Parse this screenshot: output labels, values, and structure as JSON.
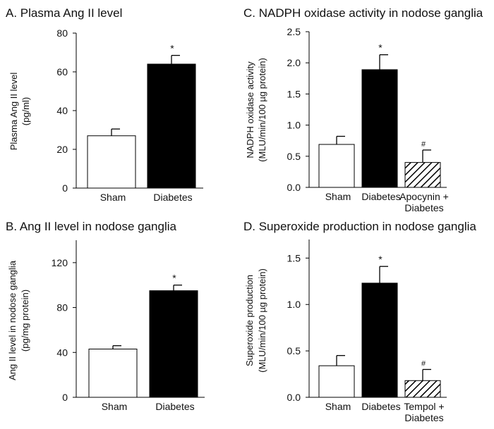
{
  "chart_data": [
    {
      "type": "bar",
      "title": "A. Plasma Ang II level",
      "ylabel": "Plasma Ang II level",
      "ylabel2": "(pg/ml)",
      "categories": [
        "Sham",
        "Diabetes"
      ],
      "values": [
        27,
        64
      ],
      "errors": [
        3.5,
        4.5
      ],
      "fills": [
        "white",
        "black"
      ],
      "marks": [
        "",
        "*"
      ],
      "ylim": [
        0,
        80
      ],
      "yticks": [
        0,
        20,
        40,
        60,
        80
      ],
      "ytick_labels": [
        "0",
        "20",
        "40",
        "60",
        "80"
      ]
    },
    {
      "type": "bar",
      "title": "C. NADPH oxidase activity in nodose ganglia",
      "ylabel": "NADPH oxidase activity",
      "ylabel2": "(MLU/min/100  µg protein)",
      "categories": [
        "Sham",
        "Diabetes",
        "Apocynin +\nDiabetes"
      ],
      "values": [
        0.69,
        1.89,
        0.4
      ],
      "errors": [
        0.13,
        0.24,
        0.2
      ],
      "fills": [
        "white",
        "black",
        "hatch"
      ],
      "marks": [
        "",
        "*",
        "#"
      ],
      "ylim": [
        0,
        2.5
      ],
      "yticks": [
        0,
        0.5,
        1.0,
        1.5,
        2.0,
        2.5
      ],
      "ytick_labels": [
        "0.0",
        "0.5",
        "1.0",
        "1.5",
        "2.0",
        "2.5"
      ]
    },
    {
      "type": "bar",
      "title": "B.  Ang II level in nodose ganglia",
      "ylabel": "Ang II level in nodose ganglia",
      "ylabel2": "(pg/mg protein)",
      "categories": [
        "Sham",
        "Diabetes"
      ],
      "values": [
        43,
        95
      ],
      "errors": [
        3,
        5
      ],
      "fills": [
        "white",
        "black"
      ],
      "marks": [
        "",
        "*"
      ],
      "ylim": [
        0,
        140
      ],
      "yticks": [
        0,
        40,
        80,
        120
      ],
      "ytick_labels": [
        "0",
        "40",
        "80",
        "120"
      ]
    },
    {
      "type": "bar",
      "title": "D. Superoxide production in nodose ganglia",
      "ylabel": "Superoxide production",
      "ylabel2": "(MLU/min/100  µg protein)",
      "categories": [
        "Sham",
        "Diabetes",
        "Tempol +\nDiabetes"
      ],
      "values": [
        0.34,
        1.23,
        0.18
      ],
      "errors": [
        0.11,
        0.18,
        0.12
      ],
      "fills": [
        "white",
        "black",
        "hatch"
      ],
      "marks": [
        "",
        "*",
        "#"
      ],
      "ylim": [
        0,
        1.7
      ],
      "yticks": [
        0,
        0.5,
        1.0,
        1.5
      ],
      "ytick_labels": [
        "0.0",
        "0.5",
        "1.0",
        "1.5"
      ]
    }
  ]
}
